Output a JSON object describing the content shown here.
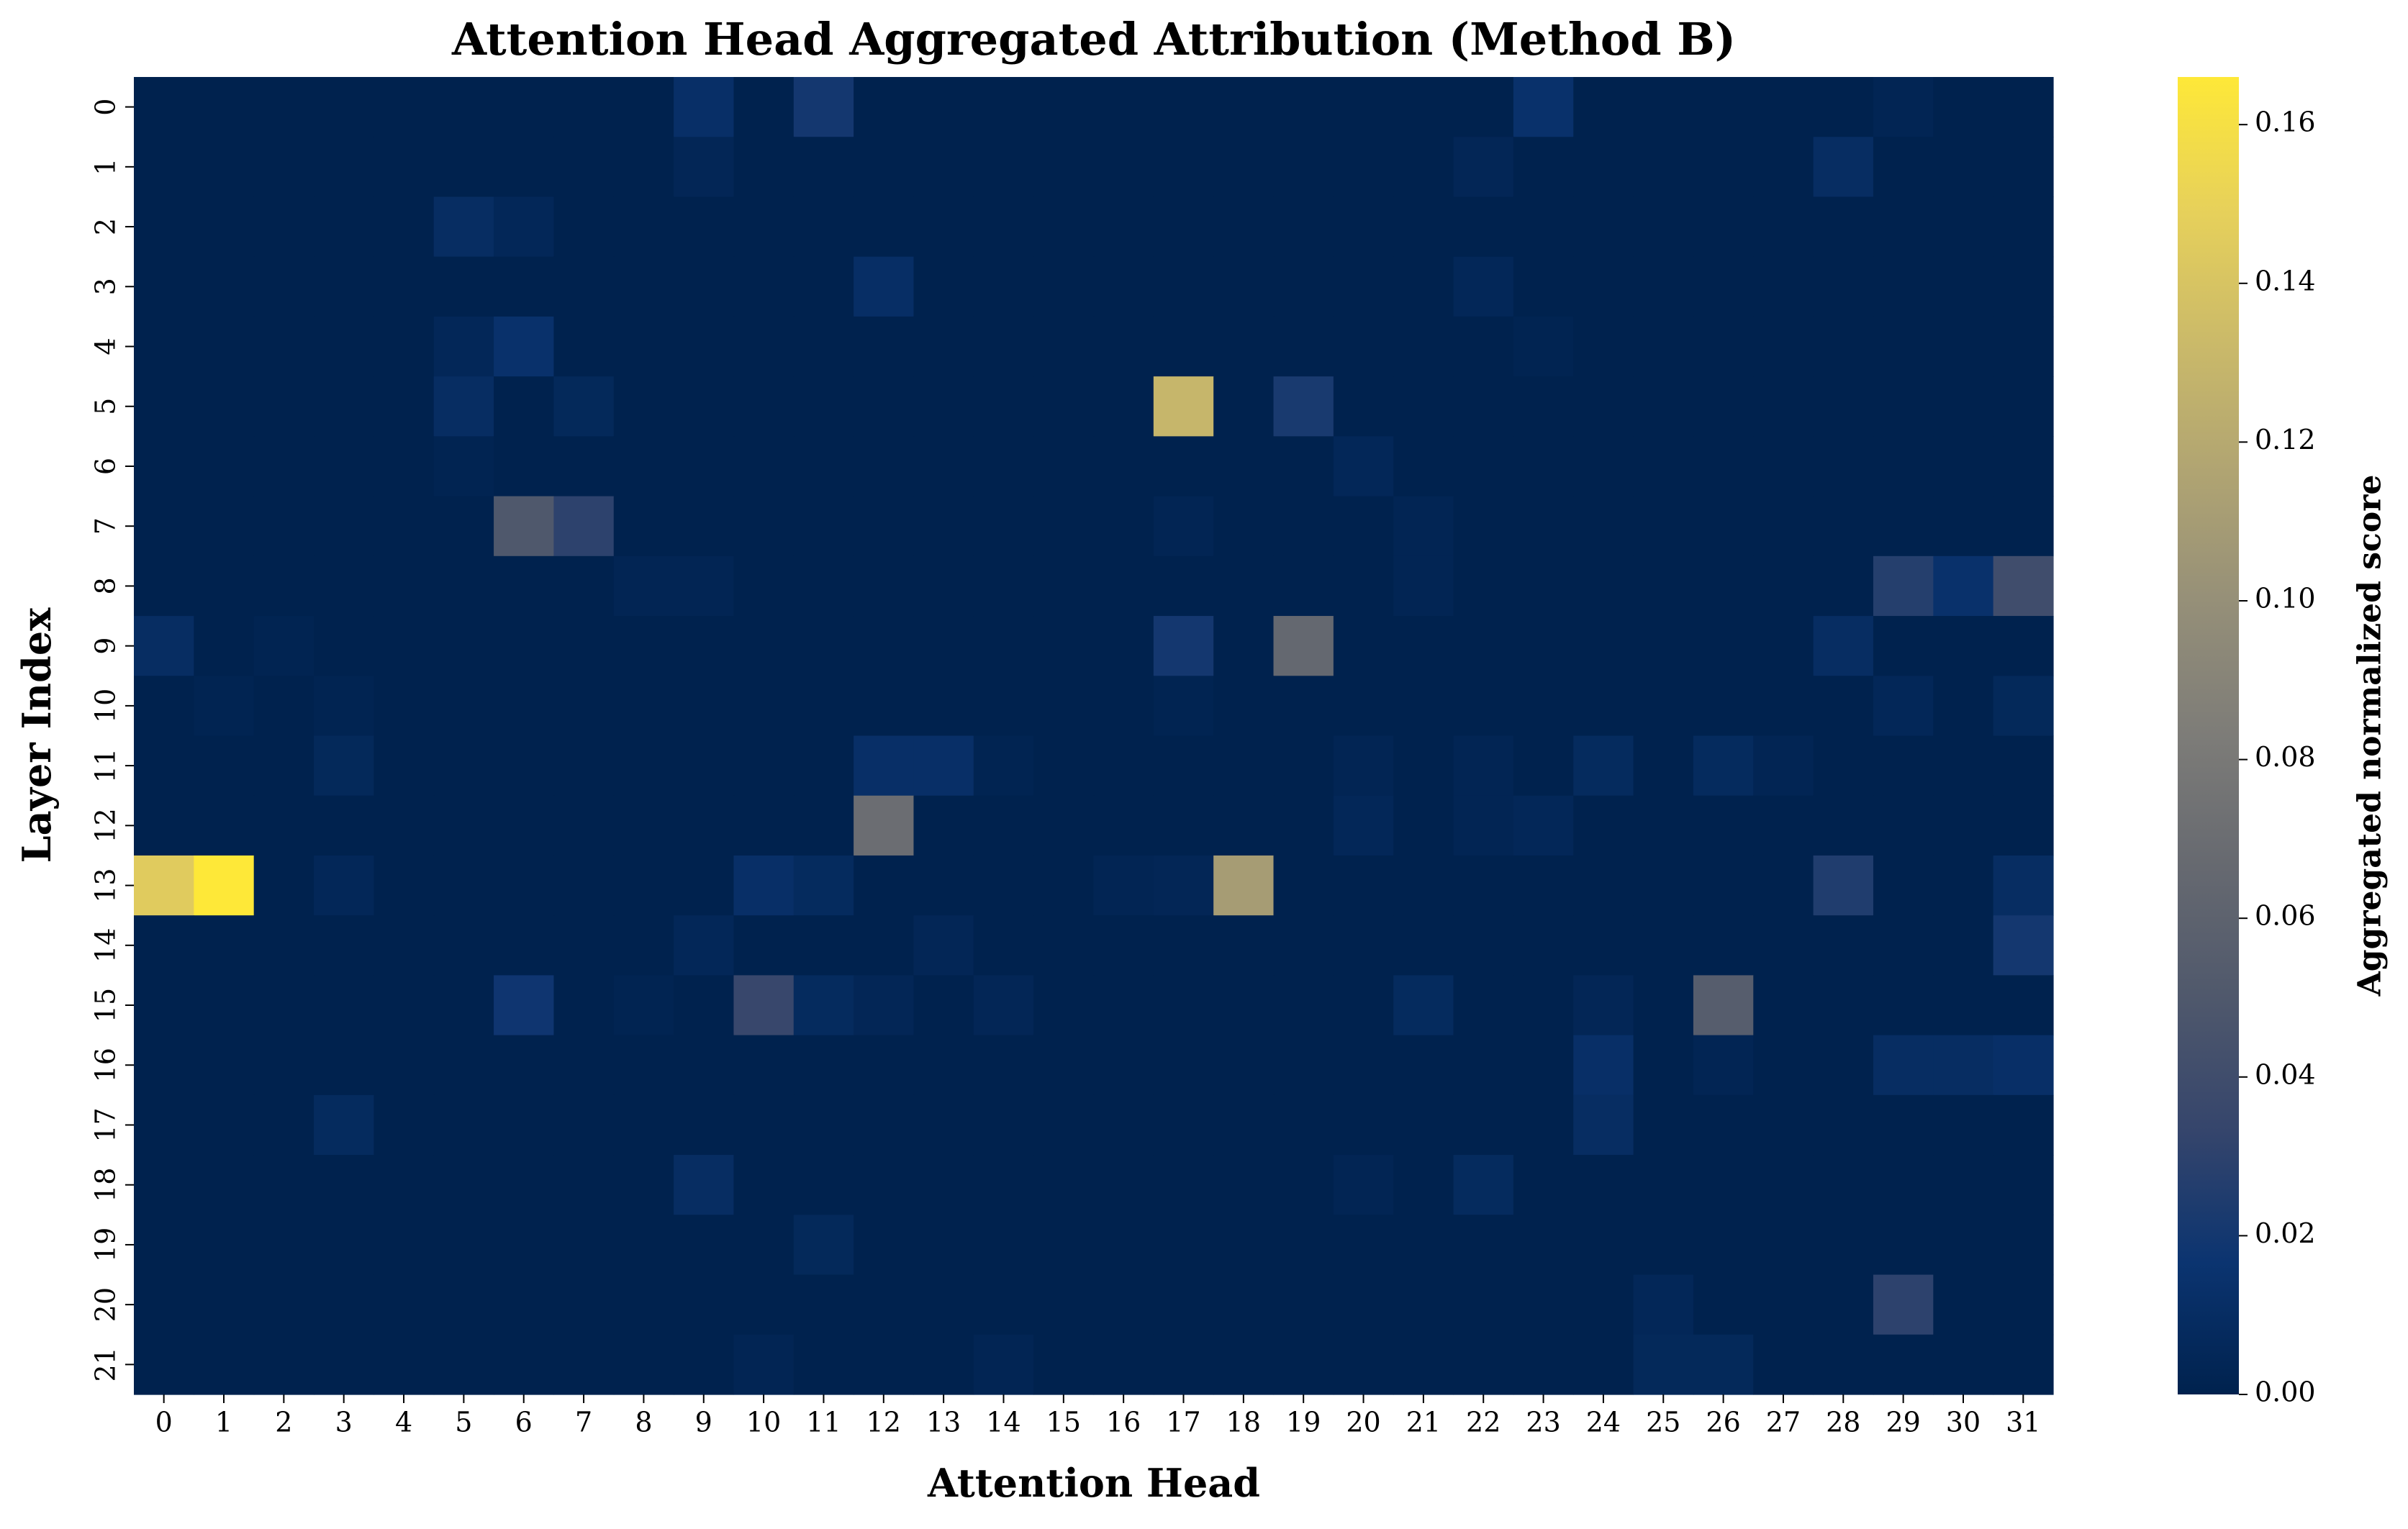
{
  "chart_data": {
    "type": "heatmap",
    "title": "Attention Head Aggregated Attribution (Method B)",
    "xlabel": "Attention Head",
    "ylabel": "Layer Index",
    "colorbar_label": "Aggregated normalized score",
    "colormap": "cividis",
    "x_categories": [
      0,
      1,
      2,
      3,
      4,
      5,
      6,
      7,
      8,
      9,
      10,
      11,
      12,
      13,
      14,
      15,
      16,
      17,
      18,
      19,
      20,
      21,
      22,
      23,
      24,
      25,
      26,
      27,
      28,
      29,
      30,
      31
    ],
    "y_categories": [
      0,
      1,
      2,
      3,
      4,
      5,
      6,
      7,
      8,
      9,
      10,
      11,
      12,
      13,
      14,
      15,
      16,
      17,
      18,
      19,
      20,
      21
    ],
    "zlim": [
      0,
      0.166
    ],
    "zticks": [
      {
        "value": 0,
        "label": "0.00"
      },
      {
        "value": 0.02,
        "label": "0.02"
      },
      {
        "value": 0.04,
        "label": "0.04"
      },
      {
        "value": 0.06,
        "label": "0.06"
      },
      {
        "value": 0.08,
        "label": "0.08"
      },
      {
        "value": 0.1,
        "label": "0.10"
      },
      {
        "value": 0.12,
        "label": "0.12"
      },
      {
        "value": 0.14,
        "label": "0.14"
      },
      {
        "value": 0.16,
        "label": "0.16"
      }
    ],
    "values": [
      [
        0,
        0,
        0,
        0,
        0,
        0,
        0,
        0,
        0,
        0.012,
        0,
        0.02,
        0,
        0,
        0,
        0,
        0,
        0,
        0,
        0,
        0,
        0,
        0,
        0.014,
        0,
        0,
        0,
        0,
        0,
        0.003,
        0,
        0
      ],
      [
        0,
        0,
        0,
        0,
        0,
        0,
        0,
        0,
        0,
        0.004,
        0,
        0,
        0,
        0,
        0,
        0,
        0,
        0,
        0,
        0,
        0,
        0,
        0.004,
        0,
        0,
        0,
        0,
        0,
        0.01,
        0,
        0,
        0
      ],
      [
        0,
        0,
        0,
        0,
        0,
        0.01,
        0.005,
        0,
        0,
        0,
        0,
        0,
        0,
        0,
        0,
        0,
        0,
        0,
        0,
        0,
        0,
        0,
        0,
        0,
        0,
        0,
        0,
        0,
        0,
        0,
        0,
        0
      ],
      [
        0,
        0,
        0,
        0,
        0,
        0,
        0,
        0,
        0,
        0,
        0,
        0,
        0.011,
        0,
        0,
        0,
        0,
        0,
        0,
        0,
        0,
        0,
        0.005,
        0,
        0,
        0,
        0,
        0,
        0,
        0,
        0,
        0
      ],
      [
        0,
        0,
        0,
        0,
        0,
        0.005,
        0.014,
        0,
        0,
        0,
        0,
        0,
        0,
        0,
        0,
        0,
        0,
        0,
        0,
        0,
        0,
        0,
        0,
        0.002,
        0,
        0,
        0,
        0,
        0,
        0,
        0,
        0
      ],
      [
        0,
        0,
        0,
        0,
        0,
        0.01,
        0,
        0.006,
        0,
        0,
        0,
        0,
        0,
        0,
        0,
        0,
        0,
        0.13,
        0,
        0.022,
        0,
        0,
        0,
        0,
        0,
        0,
        0,
        0,
        0,
        0,
        0,
        0
      ],
      [
        0,
        0,
        0,
        0,
        0,
        0.002,
        0,
        0,
        0,
        0,
        0,
        0,
        0,
        0,
        0,
        0,
        0,
        0,
        0,
        0,
        0.005,
        0,
        0,
        0,
        0,
        0,
        0,
        0,
        0,
        0,
        0,
        0
      ],
      [
        0,
        0,
        0,
        0,
        0,
        0,
        0.05,
        0.03,
        0,
        0,
        0,
        0,
        0,
        0,
        0,
        0,
        0,
        0.003,
        0,
        0,
        0,
        0.003,
        0,
        0,
        0,
        0,
        0,
        0,
        0,
        0,
        0,
        0
      ],
      [
        0,
        0,
        0,
        0,
        0,
        0,
        0,
        0,
        0.003,
        0.003,
        0,
        0,
        0,
        0,
        0,
        0,
        0,
        0,
        0,
        0,
        0,
        0.003,
        0,
        0,
        0,
        0,
        0,
        0,
        0,
        0.027,
        0.014,
        0.04
      ],
      [
        0.01,
        0,
        0.002,
        0,
        0,
        0,
        0,
        0,
        0,
        0,
        0,
        0,
        0,
        0,
        0,
        0,
        0,
        0.02,
        0,
        0.065,
        0,
        0,
        0,
        0,
        0,
        0,
        0,
        0,
        0.01,
        0,
        0,
        0
      ],
      [
        0,
        0.002,
        0,
        0.002,
        0,
        0,
        0,
        0,
        0,
        0,
        0,
        0,
        0,
        0,
        0,
        0,
        0,
        0.002,
        0,
        0,
        0,
        0,
        0,
        0,
        0,
        0,
        0,
        0,
        0,
        0.005,
        0,
        0.006
      ],
      [
        0,
        0,
        0,
        0.006,
        0,
        0,
        0,
        0,
        0,
        0,
        0,
        0,
        0.012,
        0.012,
        0.002,
        0,
        0,
        0,
        0,
        0,
        0.003,
        0,
        0.003,
        0,
        0.008,
        0,
        0.008,
        0.003,
        0,
        0,
        0,
        0
      ],
      [
        0,
        0,
        0,
        0,
        0,
        0,
        0,
        0,
        0,
        0,
        0,
        0,
        0.07,
        0,
        0,
        0,
        0,
        0,
        0,
        0,
        0.005,
        0,
        0.003,
        0.005,
        0,
        0,
        0,
        0,
        0,
        0,
        0,
        0
      ],
      [
        0.145,
        0.166,
        0,
        0.005,
        0,
        0,
        0,
        0,
        0,
        0,
        0.012,
        0.008,
        0,
        0,
        0,
        0,
        0.003,
        0.004,
        0.11,
        0,
        0,
        0,
        0,
        0,
        0,
        0,
        0,
        0,
        0.025,
        0,
        0,
        0.01
      ],
      [
        0,
        0,
        0,
        0,
        0,
        0,
        0,
        0,
        0,
        0.005,
        0,
        0,
        0,
        0.004,
        0,
        0,
        0,
        0,
        0,
        0,
        0,
        0,
        0,
        0,
        0,
        0,
        0,
        0,
        0,
        0,
        0,
        0.02
      ],
      [
        0,
        0,
        0,
        0,
        0,
        0,
        0.018,
        0,
        0.002,
        0,
        0.035,
        0.008,
        0.004,
        0,
        0.004,
        0,
        0,
        0,
        0,
        0,
        0,
        0.008,
        0,
        0,
        0.004,
        0,
        0.055,
        0,
        0,
        0,
        0,
        0
      ],
      [
        0,
        0,
        0,
        0,
        0,
        0,
        0,
        0,
        0,
        0,
        0,
        0,
        0,
        0,
        0,
        0,
        0,
        0,
        0,
        0,
        0,
        0,
        0,
        0,
        0.012,
        0,
        0.003,
        0,
        0,
        0.01,
        0.01,
        0.012
      ],
      [
        0,
        0,
        0,
        0.008,
        0,
        0,
        0,
        0,
        0,
        0,
        0,
        0,
        0,
        0,
        0,
        0,
        0,
        0,
        0,
        0,
        0,
        0,
        0,
        0,
        0.01,
        0,
        0,
        0,
        0,
        0,
        0,
        0
      ],
      [
        0,
        0,
        0,
        0,
        0,
        0,
        0,
        0,
        0,
        0.01,
        0,
        0,
        0,
        0,
        0,
        0,
        0,
        0,
        0,
        0,
        0.003,
        0,
        0.008,
        0,
        0,
        0,
        0,
        0,
        0,
        0,
        0,
        0
      ],
      [
        0,
        0,
        0,
        0,
        0,
        0,
        0,
        0,
        0,
        0,
        0,
        0.006,
        0,
        0,
        0,
        0,
        0,
        0,
        0,
        0,
        0,
        0,
        0,
        0,
        0,
        0,
        0,
        0,
        0,
        0,
        0,
        0
      ],
      [
        0,
        0,
        0,
        0,
        0,
        0,
        0,
        0,
        0,
        0,
        0,
        0,
        0,
        0,
        0,
        0,
        0,
        0,
        0,
        0,
        0,
        0,
        0,
        0,
        0,
        0.005,
        0,
        0,
        0,
        0.03,
        0,
        0
      ],
      [
        0,
        0,
        0,
        0,
        0,
        0,
        0,
        0,
        0,
        0,
        0.003,
        0,
        0,
        0,
        0.003,
        0,
        0,
        0,
        0,
        0,
        0,
        0,
        0,
        0,
        0,
        0.006,
        0.006,
        0,
        0,
        0,
        0,
        0
      ]
    ]
  }
}
